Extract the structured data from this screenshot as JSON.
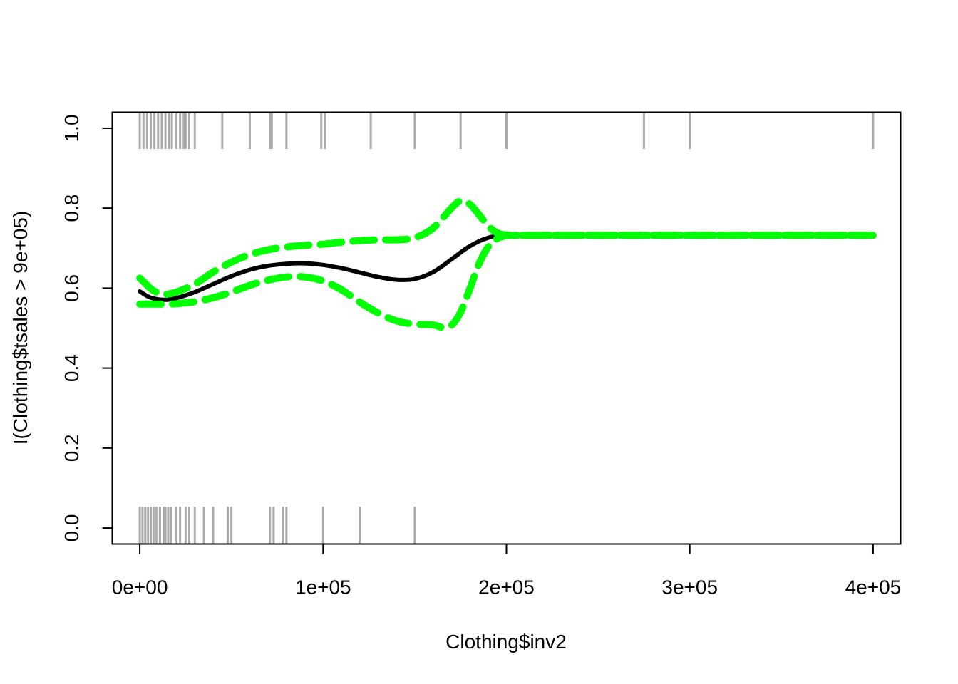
{
  "chart_data": {
    "type": "line",
    "title": "",
    "xlabel": "Clothing$inv2",
    "ylabel": "I(Clothing$tsales > 9e+05)",
    "xlim": [
      -15000,
      415000
    ],
    "ylim": [
      -0.04,
      1.04
    ],
    "x_ticks": [
      {
        "value": 0,
        "label": "0e+00"
      },
      {
        "value": 100000,
        "label": "1e+05"
      },
      {
        "value": 200000,
        "label": "2e+05"
      },
      {
        "value": 300000,
        "label": "3e+05"
      },
      {
        "value": 400000,
        "label": "4e+05"
      }
    ],
    "y_ticks": [
      {
        "value": 0.0,
        "label": "0.0"
      },
      {
        "value": 0.2,
        "label": "0.2"
      },
      {
        "value": 0.4,
        "label": "0.4"
      },
      {
        "value": 0.6,
        "label": "0.6"
      },
      {
        "value": 0.8,
        "label": "0.8"
      },
      {
        "value": 1.0,
        "label": "1.0"
      }
    ],
    "rug_color": "#aaaaaa",
    "rug_top_x": [
      0,
      2000,
      4000,
      6000,
      8000,
      10000,
      12000,
      14000,
      16000,
      17500,
      20000,
      22000,
      24000,
      25000,
      27000,
      30000,
      45000,
      60000,
      71000,
      72000,
      80000,
      99000,
      101000,
      126000,
      150000,
      175000,
      200000,
      275000,
      300000,
      400000
    ],
    "rug_bottom_x": [
      0,
      1500,
      3000,
      4500,
      6000,
      7500,
      9000,
      11000,
      13000,
      14000,
      15500,
      17000,
      20000,
      22000,
      25000,
      27000,
      30000,
      35000,
      40000,
      48000,
      50000,
      71000,
      73000,
      78000,
      80000,
      100000,
      120000,
      150000
    ],
    "series": [
      {
        "role": "fit",
        "color": "#000000",
        "style": "solid",
        "x": [
          0,
          5000,
          10000,
          15000,
          20000,
          30000,
          40000,
          50000,
          60000,
          70000,
          80000,
          90000,
          100000,
          110000,
          120000,
          130000,
          140000,
          150000,
          160000,
          170000,
          180000,
          190000,
          200000,
          205000,
          220000,
          260000,
          300000,
          350000,
          400000
        ],
        "y": [
          0.592,
          0.578,
          0.572,
          0.571,
          0.575,
          0.59,
          0.61,
          0.63,
          0.646,
          0.656,
          0.661,
          0.662,
          0.658,
          0.65,
          0.639,
          0.628,
          0.621,
          0.623,
          0.64,
          0.672,
          0.705,
          0.726,
          0.732,
          0.732,
          0.732,
          0.732,
          0.732,
          0.732,
          0.732
        ]
      },
      {
        "role": "upper-band",
        "color": "#00ff00",
        "style": "dashed",
        "x": [
          0,
          3000,
          7000,
          12000,
          15000,
          20000,
          30000,
          40000,
          50000,
          60000,
          70000,
          80000,
          90000,
          100000,
          110000,
          120000,
          130000,
          140000,
          150000,
          160000,
          170000,
          175000,
          180000,
          185000,
          190000,
          195000,
          200000,
          205000,
          220000,
          260000,
          300000,
          350000,
          400000
        ],
        "y": [
          0.625,
          0.612,
          0.595,
          0.585,
          0.585,
          0.59,
          0.61,
          0.64,
          0.665,
          0.684,
          0.696,
          0.703,
          0.707,
          0.71,
          0.715,
          0.719,
          0.721,
          0.721,
          0.726,
          0.75,
          0.8,
          0.818,
          0.81,
          0.784,
          0.756,
          0.738,
          0.733,
          0.732,
          0.732,
          0.732,
          0.732,
          0.732,
          0.732
        ]
      },
      {
        "role": "lower-band",
        "color": "#00ff00",
        "style": "dashed",
        "x": [
          0,
          5000,
          10000,
          15000,
          20000,
          30000,
          40000,
          50000,
          60000,
          70000,
          80000,
          90000,
          100000,
          110000,
          120000,
          130000,
          140000,
          150000,
          160000,
          165000,
          170000,
          175000,
          180000,
          185000,
          190000,
          195000,
          200000,
          205000,
          220000,
          260000,
          300000,
          350000,
          400000
        ],
        "y": [
          0.56,
          0.56,
          0.56,
          0.56,
          0.561,
          0.566,
          0.576,
          0.59,
          0.607,
          0.62,
          0.628,
          0.628,
          0.618,
          0.596,
          0.565,
          0.538,
          0.518,
          0.51,
          0.508,
          0.502,
          0.507,
          0.54,
          0.598,
          0.66,
          0.703,
          0.724,
          0.731,
          0.732,
          0.732,
          0.732,
          0.732,
          0.732,
          0.732
        ]
      }
    ]
  }
}
